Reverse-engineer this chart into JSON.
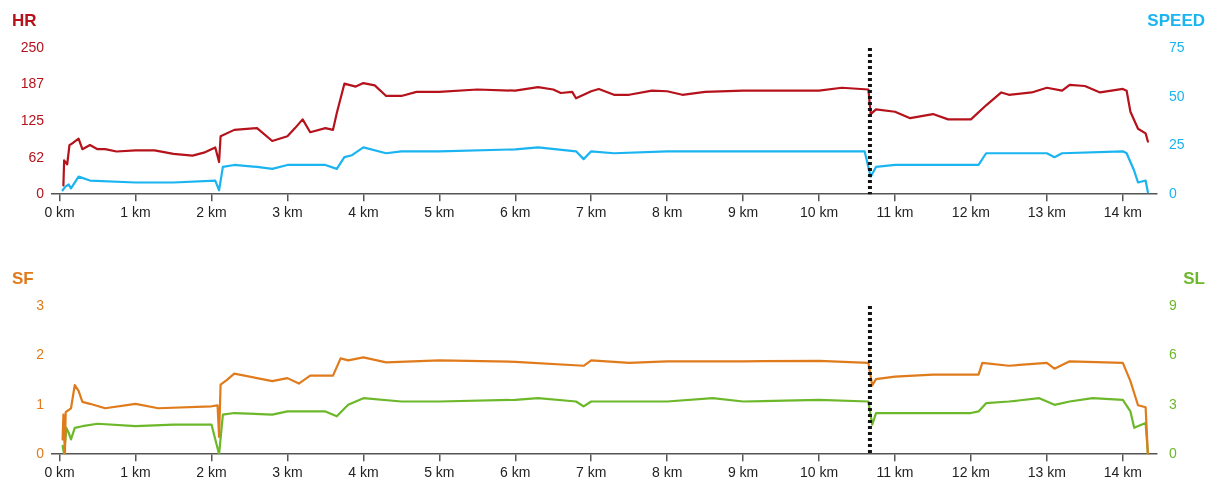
{
  "chart_data": [
    {
      "type": "line",
      "ylabel": "HR",
      "y2label": "SPEED",
      "legend": false,
      "grid": false,
      "marker": "none",
      "line_style": "solid",
      "xlim": [
        -0.1,
        14.45
      ],
      "xticks": [
        {
          "value": 0,
          "label": "0 km"
        },
        {
          "value": 1,
          "label": "1 km"
        },
        {
          "value": 2,
          "label": "2 km"
        },
        {
          "value": 3,
          "label": "3 km"
        },
        {
          "value": 4,
          "label": "4 km"
        },
        {
          "value": 5,
          "label": "5 km"
        },
        {
          "value": 6,
          "label": "6 km"
        },
        {
          "value": 7,
          "label": "7 km"
        },
        {
          "value": 8,
          "label": "8 km"
        },
        {
          "value": 9,
          "label": "9 km"
        },
        {
          "value": 10,
          "label": "10 km"
        },
        {
          "value": 11,
          "label": "11 km"
        },
        {
          "value": 12,
          "label": "12 km"
        },
        {
          "value": 13,
          "label": "13 km"
        },
        {
          "value": 14,
          "label": "14 km"
        }
      ],
      "ylim": [
        0,
        250
      ],
      "yticks": [
        0,
        {
          "value": 62.5,
          "label": "62"
        },
        125,
        {
          "value": 187.5,
          "label": "187"
        },
        250
      ],
      "y2lim": [
        0,
        75
      ],
      "y2ticks": [
        0,
        25,
        50,
        75
      ],
      "ref_lines": [
        {
          "axis": "x",
          "value": 10.67,
          "color": "#111111",
          "line_style": "dotted"
        }
      ],
      "series": [
        {
          "color": "#b5121b",
          "axis": "y",
          "x": [
            0.05,
            0.06,
            0.1,
            0.13,
            0.18,
            0.25,
            0.3,
            0.4,
            0.5,
            0.6,
            0.75,
            1.0,
            1.25,
            1.5,
            1.75,
            1.9,
            2.05,
            2.1,
            2.12,
            2.3,
            2.6,
            2.8,
            3.0,
            3.1,
            3.2,
            3.3,
            3.5,
            3.6,
            3.65,
            3.75,
            3.9,
            4.0,
            4.15,
            4.3,
            4.5,
            4.7,
            5.0,
            5.5,
            6.0,
            6.3,
            6.5,
            6.6,
            6.75,
            6.8,
            7.0,
            7.1,
            7.3,
            7.5,
            7.8,
            8.0,
            8.2,
            8.5,
            9.0,
            9.5,
            10.0,
            10.3,
            10.65,
            10.68,
            10.75,
            11.0,
            11.2,
            11.5,
            11.7,
            12.0,
            12.2,
            12.4,
            12.5,
            12.8,
            13.0,
            13.2,
            13.3,
            13.5,
            13.7,
            14.0,
            14.05,
            14.1,
            14.2,
            14.3,
            14.33
          ],
          "values": [
            15,
            58,
            51,
            84,
            88,
            95,
            77,
            84,
            77,
            77,
            73,
            75,
            75,
            69,
            66,
            71,
            80,
            55,
            99,
            110,
            113,
            91,
            99,
            113,
            128,
            106,
            113,
            110,
            139,
            189,
            184,
            190,
            186,
            168,
            168,
            175,
            175,
            179,
            177,
            183,
            179,
            173,
            175,
            164,
            176,
            180,
            170,
            170,
            177,
            176,
            170,
            175,
            177,
            177,
            177,
            182,
            179,
            137,
            145,
            141,
            130,
            137,
            128,
            128,
            152,
            174,
            170,
            174,
            182,
            177,
            187,
            185,
            174,
            180,
            177,
            141,
            112,
            104,
            90
          ]
        },
        {
          "color": "#1ab4f0",
          "axis": "y2",
          "x": [
            0.04,
            0.08,
            0.12,
            0.15,
            0.25,
            0.4,
            1.0,
            1.5,
            2.05,
            2.1,
            2.15,
            2.3,
            2.6,
            2.8,
            3.0,
            3.5,
            3.65,
            3.75,
            3.85,
            4.0,
            4.3,
            4.5,
            5.0,
            6.0,
            6.3,
            6.8,
            6.9,
            7.0,
            7.3,
            8.0,
            9.0,
            10.0,
            10.6,
            10.68,
            10.75,
            11.0,
            12.0,
            12.1,
            12.2,
            12.5,
            13.0,
            13.1,
            13.2,
            14.0,
            14.05,
            14.15,
            14.2,
            14.3,
            14.33
          ],
          "values": [
            2,
            4,
            5,
            3,
            9,
            7,
            6,
            6,
            7,
            2,
            14,
            15,
            14,
            13,
            15,
            15,
            13,
            19,
            20,
            24,
            21,
            22,
            22,
            23,
            24,
            22,
            18,
            22,
            21,
            22,
            22,
            22,
            22,
            9,
            14,
            15,
            15,
            15,
            21,
            21,
            21,
            19,
            21,
            22,
            21,
            12,
            6,
            7,
            1
          ]
        }
      ]
    },
    {
      "type": "line",
      "ylabel": "SF",
      "y2label": "SL",
      "legend": false,
      "grid": false,
      "marker": "none",
      "line_style": "solid",
      "xlim": [
        -0.1,
        14.45
      ],
      "xticks": [
        {
          "value": 0,
          "label": "0 km"
        },
        {
          "value": 1,
          "label": "1 km"
        },
        {
          "value": 2,
          "label": "2 km"
        },
        {
          "value": 3,
          "label": "3 km"
        },
        {
          "value": 4,
          "label": "4 km"
        },
        {
          "value": 5,
          "label": "5 km"
        },
        {
          "value": 6,
          "label": "6 km"
        },
        {
          "value": 7,
          "label": "7 km"
        },
        {
          "value": 8,
          "label": "8 km"
        },
        {
          "value": 9,
          "label": "9 km"
        },
        {
          "value": 10,
          "label": "10 km"
        },
        {
          "value": 11,
          "label": "11 km"
        },
        {
          "value": 12,
          "label": "12 km"
        },
        {
          "value": 13,
          "label": "13 km"
        },
        {
          "value": 14,
          "label": "14 km"
        }
      ],
      "ylim": [
        0,
        3
      ],
      "yticks": [
        0,
        1,
        2,
        3
      ],
      "y2lim": [
        0,
        9
      ],
      "y2ticks": [
        0,
        3,
        6,
        9
      ],
      "ref_lines": [
        {
          "axis": "x",
          "value": 10.67,
          "color": "#111111",
          "line_style": "dotted"
        }
      ],
      "series": [
        {
          "color": "#e07b1c",
          "axis": "y",
          "x": [
            0.04,
            0.05,
            0.07,
            0.08,
            0.15,
            0.2,
            0.25,
            0.3,
            0.4,
            0.6,
            1.0,
            1.3,
            2.0,
            2.08,
            2.1,
            2.12,
            2.2,
            2.3,
            2.6,
            2.8,
            3.0,
            3.15,
            3.3,
            3.6,
            3.7,
            3.8,
            4.0,
            4.3,
            5.0,
            6.0,
            6.9,
            7.0,
            7.5,
            8.0,
            9.0,
            10.0,
            10.65,
            10.7,
            10.75,
            11.0,
            11.5,
            12.0,
            12.1,
            12.15,
            12.5,
            13.0,
            13.1,
            13.3,
            14.0,
            14.1,
            14.2,
            14.3,
            14.33
          ],
          "values": [
            0.3,
            0.8,
            0,
            0.85,
            0.93,
            1.4,
            1.28,
            1.06,
            1.02,
            0.93,
            1.02,
            0.93,
            0.97,
            0.99,
            0.35,
            1.41,
            1.5,
            1.63,
            1.54,
            1.48,
            1.54,
            1.43,
            1.59,
            1.59,
            1.94,
            1.9,
            1.96,
            1.86,
            1.9,
            1.87,
            1.79,
            1.9,
            1.85,
            1.88,
            1.88,
            1.89,
            1.85,
            1.39,
            1.52,
            1.57,
            1.61,
            1.61,
            1.61,
            1.85,
            1.79,
            1.85,
            1.73,
            1.88,
            1.85,
            1.48,
            0.99,
            0.95,
            0
          ]
        },
        {
          "color": "#6cb82a",
          "axis": "y2",
          "x": [
            0.04,
            0.06,
            0.09,
            0.12,
            0.15,
            0.2,
            0.3,
            0.5,
            1.0,
            1.5,
            2.0,
            2.1,
            2.15,
            2.3,
            2.8,
            3.0,
            3.5,
            3.65,
            3.8,
            4.0,
            4.5,
            5.0,
            6.0,
            6.3,
            6.8,
            6.9,
            7.0,
            7.5,
            8.0,
            8.6,
            9.0,
            10.0,
            10.65,
            10.7,
            10.75,
            11.5,
            12.0,
            12.1,
            12.2,
            12.5,
            12.9,
            13.1,
            13.3,
            13.6,
            14.0,
            14.1,
            14.15,
            14.3,
            14.33
          ],
          "values": [
            0.5,
            0,
            1.6,
            1.3,
            0.9,
            1.6,
            1.7,
            1.85,
            1.7,
            1.8,
            1.8,
            0,
            2.4,
            2.5,
            2.4,
            2.6,
            2.6,
            2.3,
            3.0,
            3.4,
            3.2,
            3.2,
            3.3,
            3.4,
            3.2,
            2.9,
            3.2,
            3.2,
            3.2,
            3.4,
            3.2,
            3.3,
            3.2,
            1.8,
            2.5,
            2.5,
            2.5,
            2.6,
            3.1,
            3.2,
            3.4,
            3.0,
            3.2,
            3.4,
            3.3,
            2.6,
            1.6,
            1.9,
            0
          ]
        }
      ]
    }
  ]
}
